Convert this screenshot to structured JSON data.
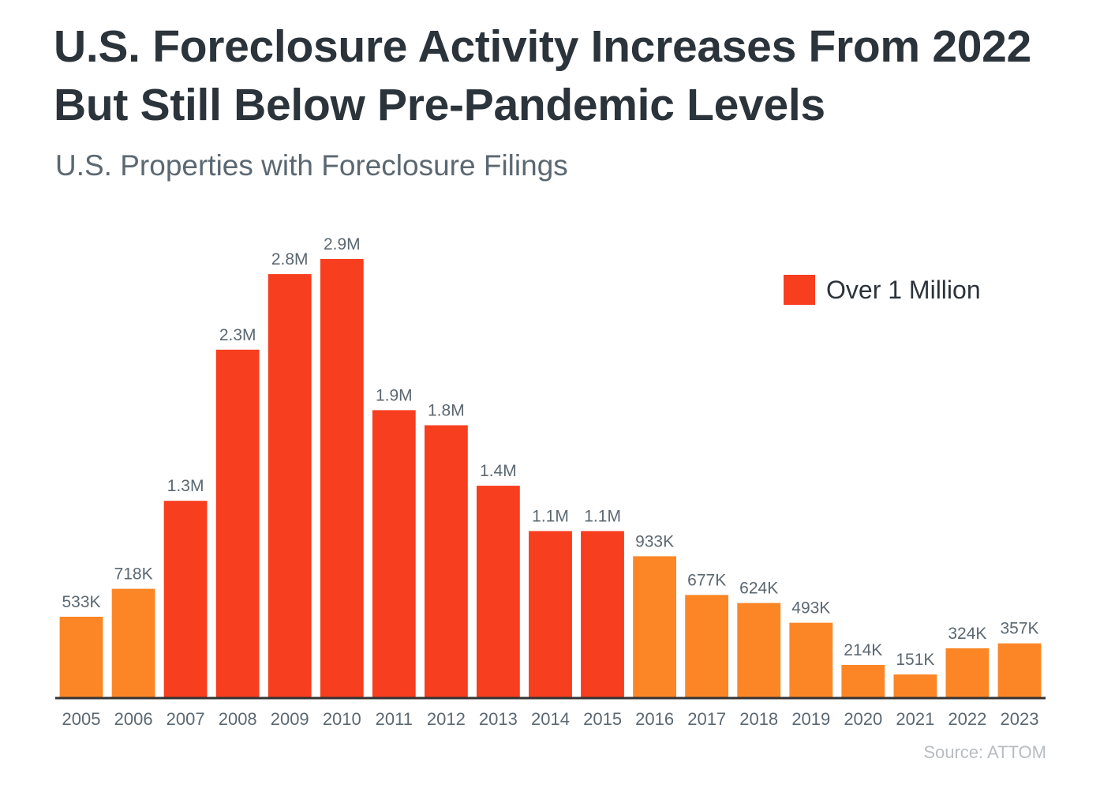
{
  "title": "U.S. Foreclosure Activity Increases From 2022 But Still Below Pre-Pandemic Levels",
  "subtitle": "U.S. Properties with Foreclosure Filings",
  "source": "Source: ATTOM",
  "legend": {
    "label": "Over 1 Million",
    "color": "#f73e1f"
  },
  "colors": {
    "over_million": "#f73e1f",
    "under_million": "#fc8626",
    "axis": "#333333"
  },
  "chart_data": {
    "type": "bar",
    "title": "U.S. Properties with Foreclosure Filings",
    "xlabel": "",
    "ylabel": "",
    "ylim": [
      0,
      2900000
    ],
    "grid": false,
    "legend_position": "top-right",
    "categories": [
      "2005",
      "2006",
      "2007",
      "2008",
      "2009",
      "2010",
      "2011",
      "2012",
      "2013",
      "2014",
      "2015",
      "2016",
      "2017",
      "2018",
      "2019",
      "2020",
      "2021",
      "2022",
      "2023"
    ],
    "values": [
      533000,
      718000,
      1300000,
      2300000,
      2800000,
      2900000,
      1900000,
      1800000,
      1400000,
      1100000,
      1100000,
      933000,
      677000,
      624000,
      493000,
      214000,
      151000,
      324000,
      357000
    ],
    "labels": [
      "533K",
      "718K",
      "1.3M",
      "2.3M",
      "2.8M",
      "2.9M",
      "1.9M",
      "1.8M",
      "1.4M",
      "1.1M",
      "1.1M",
      "933K",
      "677K",
      "624K",
      "493K",
      "214K",
      "151K",
      "324K",
      "357K"
    ],
    "highlight_threshold": 1000000
  }
}
